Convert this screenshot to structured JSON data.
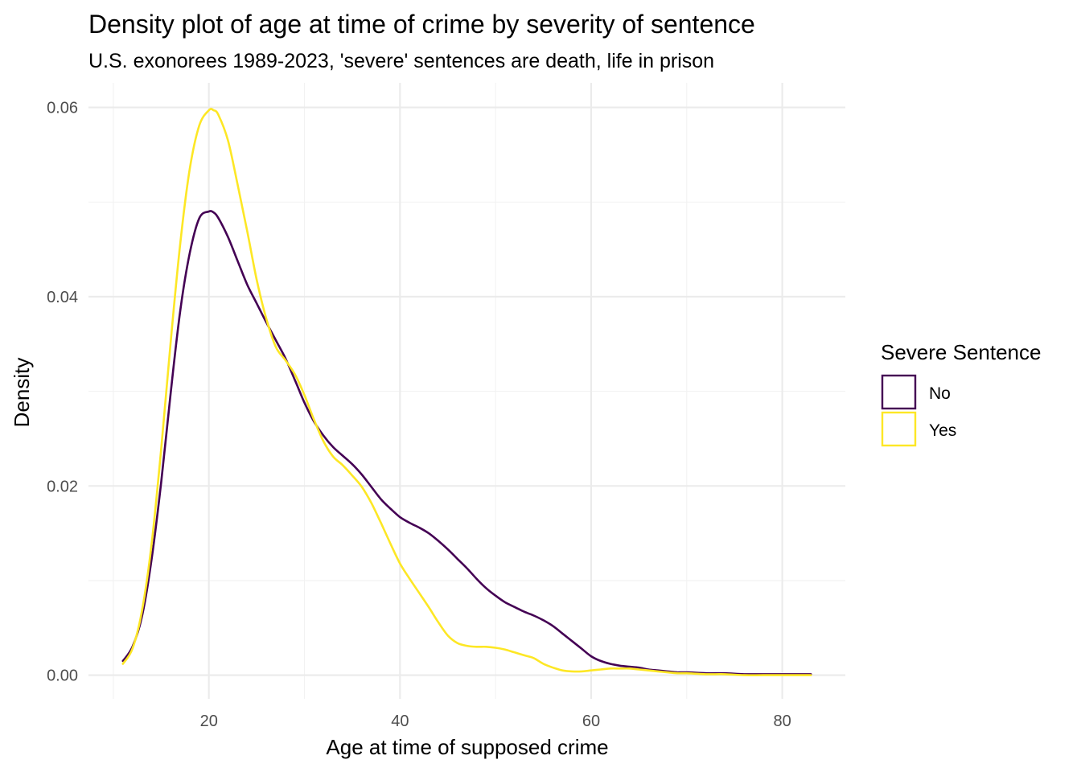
{
  "chart_data": {
    "type": "line",
    "title": "Density plot of age at time of crime by severity of sentence",
    "subtitle": "U.S. exonorees 1989-2023, 'severe' sentences are death, life in prison",
    "xlabel": "Age at time of supposed crime",
    "ylabel": "Density",
    "xlim": [
      7.4,
      86.6
    ],
    "ylim": [
      -0.0025,
      0.0626
    ],
    "x_ticks": [
      20,
      40,
      60,
      80
    ],
    "x_tick_labels": [
      "20",
      "40",
      "60",
      "80"
    ],
    "y_ticks": [
      0.0,
      0.02,
      0.04,
      0.06
    ],
    "y_tick_labels": [
      "0.00",
      "0.02",
      "0.04",
      "0.06"
    ],
    "grid": true,
    "legend": {
      "title": "Severe Sentence",
      "position": "right",
      "entries": [
        "No",
        "Yes"
      ]
    },
    "series": [
      {
        "name": "No",
        "color": "#440154",
        "x": [
          11,
          12,
          13,
          14,
          15,
          16,
          17,
          18,
          19,
          20,
          20.5,
          21,
          22,
          23,
          24,
          25,
          26,
          27,
          28,
          29,
          30,
          31,
          32,
          33,
          34,
          35,
          36,
          37,
          38,
          39,
          40,
          41,
          42,
          43,
          44,
          45,
          46,
          47,
          48,
          49,
          50,
          51,
          52,
          53,
          54,
          55,
          56,
          57,
          58,
          59,
          60,
          61,
          62,
          63,
          64,
          65,
          66,
          67,
          68,
          69,
          70,
          72,
          74,
          76,
          78,
          80,
          83
        ],
        "values": [
          0.0015,
          0.003,
          0.0062,
          0.0122,
          0.0203,
          0.0298,
          0.0385,
          0.0446,
          0.0483,
          0.049,
          0.0489,
          0.0483,
          0.0463,
          0.0438,
          0.0413,
          0.0393,
          0.0373,
          0.0354,
          0.0335,
          0.0312,
          0.0288,
          0.0268,
          0.0253,
          0.0241,
          0.0232,
          0.0223,
          0.0212,
          0.0199,
          0.0186,
          0.0176,
          0.0167,
          0.0161,
          0.0156,
          0.015,
          0.0142,
          0.0133,
          0.0123,
          0.0113,
          0.0102,
          0.0092,
          0.0084,
          0.0077,
          0.0072,
          0.0067,
          0.0063,
          0.0058,
          0.0052,
          0.0044,
          0.0036,
          0.0028,
          0.002,
          0.0015,
          0.0012,
          0.001,
          0.0009,
          0.0008,
          0.0006,
          0.0005,
          0.0004,
          0.0003,
          0.0003,
          0.0002,
          0.0002,
          0.0001,
          0.0001,
          0.0001,
          0.0001
        ]
      },
      {
        "name": "Yes",
        "color": "#fde725",
        "x": [
          11,
          12,
          13,
          14,
          15,
          16,
          17,
          18,
          19,
          20,
          20.5,
          21,
          22,
          23,
          24,
          25,
          26,
          27,
          28,
          29,
          30,
          31,
          32,
          33,
          34,
          35,
          36,
          37,
          38,
          39,
          40,
          41,
          42,
          43,
          44,
          45,
          46,
          47,
          48,
          49,
          50,
          51,
          52,
          53,
          54,
          55,
          56,
          57,
          58,
          59,
          60,
          61,
          62,
          63,
          64,
          65,
          66,
          67,
          68,
          69,
          70,
          72,
          74,
          76,
          78,
          80,
          83
        ],
        "values": [
          0.0012,
          0.0028,
          0.0068,
          0.0138,
          0.0238,
          0.0352,
          0.0456,
          0.0535,
          0.0581,
          0.0597,
          0.0597,
          0.0592,
          0.0565,
          0.0519,
          0.047,
          0.0418,
          0.0377,
          0.0347,
          0.0333,
          0.0318,
          0.0296,
          0.027,
          0.0247,
          0.0231,
          0.0222,
          0.0211,
          0.0199,
          0.0182,
          0.0161,
          0.0139,
          0.0118,
          0.0102,
          0.0087,
          0.0072,
          0.0056,
          0.0042,
          0.0034,
          0.0031,
          0.003,
          0.003,
          0.0029,
          0.0027,
          0.0024,
          0.0021,
          0.0018,
          0.0012,
          0.0008,
          0.0005,
          0.0004,
          0.0004,
          0.0005,
          0.0006,
          0.0007,
          0.0007,
          0.0007,
          0.0006,
          0.0005,
          0.0004,
          0.0003,
          0.0002,
          0.0002,
          0.0001,
          0.0001,
          0.0,
          0.0,
          0.0,
          0.0
        ]
      }
    ]
  }
}
